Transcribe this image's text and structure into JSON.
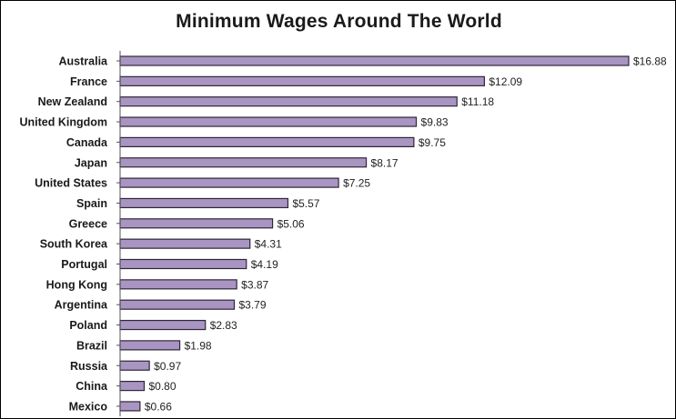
{
  "colors": {
    "bar_fill": "#a995c2",
    "bar_stroke": "#2f2538",
    "axis": "#555555",
    "text": "#1a1a1a"
  },
  "chart_data": {
    "type": "bar",
    "orientation": "horizontal",
    "title": "Minimum Wages Around The World",
    "xlabel": "",
    "ylabel": "",
    "value_prefix": "$",
    "grid": false,
    "legend": "none",
    "xlim": [
      0,
      17
    ],
    "categories": [
      "Australia",
      "France",
      "New Zealand",
      "United Kingdom",
      "Canada",
      "Japan",
      "United States",
      "Spain",
      "Greece",
      "South Korea",
      "Portugal",
      "Hong Kong",
      "Argentina",
      "Poland",
      "Brazil",
      "Russia",
      "China",
      "Mexico"
    ],
    "values": [
      16.88,
      12.09,
      11.18,
      9.83,
      9.75,
      8.17,
      7.25,
      5.57,
      5.06,
      4.31,
      4.19,
      3.87,
      3.79,
      2.83,
      1.98,
      0.97,
      0.8,
      0.66
    ],
    "value_labels": [
      "$16.88",
      "$12.09",
      "$11.18",
      "$9.83",
      "$9.75",
      "$8.17",
      "$7.25",
      "$5.57",
      "$5.06",
      "$4.31",
      "$4.19",
      "$3.87",
      "$3.79",
      "$2.83",
      "$1.98",
      "$0.97",
      "$0.80",
      "$0.66"
    ]
  }
}
